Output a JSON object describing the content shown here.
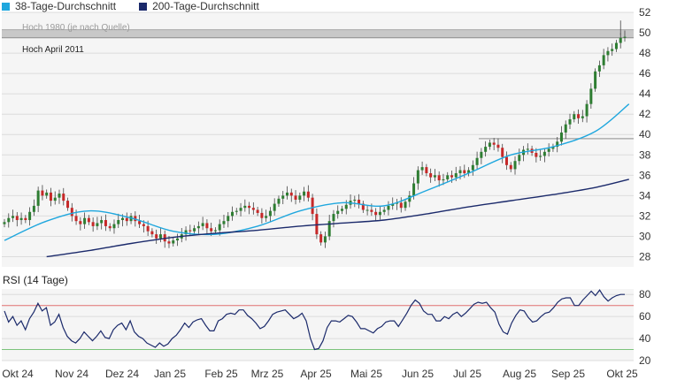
{
  "legend": {
    "items": [
      {
        "label": "38-Tage-Durchschnitt",
        "color": "#1fa7de"
      },
      {
        "label": "200-Tage-Durchschnitt",
        "color": "#1b2a6b"
      }
    ]
  },
  "chart_data": [
    {
      "type": "candlestick",
      "title": "",
      "ylim": [
        27,
        52
      ],
      "y_ticks": [
        "28",
        "30",
        "32",
        "34",
        "36",
        "38",
        "40",
        "42",
        "44",
        "46",
        "48",
        "50",
        "52"
      ],
      "x_ticks": [
        "Okt 24",
        "Nov 24",
        "Dez 24",
        "Jan 25",
        "Feb 25",
        "Mrz 25",
        "Apr 25",
        "Mai 25",
        "Jun 25",
        "Jul 25",
        "Aug 25",
        "Sep 25",
        "Okt 25"
      ],
      "grid": true,
      "annotations": {
        "band": {
          "label": "Hoch 1980 (je nach Quelle)",
          "from": 49.5,
          "to": 50.3
        },
        "line_label": "Hoch April 2011",
        "resistance": 39.6
      },
      "closes": [
        31.4,
        31.8,
        32.0,
        31.6,
        31.8,
        31.6,
        32.4,
        33.0,
        34.5,
        34.0,
        34.3,
        33.5,
        33.8,
        34.2,
        33.5,
        32.8,
        32.0,
        31.5,
        31.2,
        31.8,
        31.4,
        31.0,
        31.3,
        31.6,
        31.0,
        30.8,
        31.2,
        31.6,
        31.8,
        31.5,
        32.0,
        31.5,
        31.2,
        31.0,
        30.5,
        30.2,
        29.8,
        30.2,
        29.5,
        29.3,
        29.6,
        29.8,
        30.2,
        30.6,
        30.5,
        30.8,
        31.0,
        31.3,
        30.8,
        30.5,
        30.6,
        31.2,
        31.5,
        32.0,
        32.4,
        32.5,
        32.8,
        33.0,
        32.8,
        32.6,
        32.3,
        31.8,
        32.0,
        32.5,
        33.2,
        33.7,
        34.0,
        34.3,
        34.0,
        33.6,
        34.0,
        34.4,
        33.8,
        32.2,
        30.2,
        29.4,
        30.0,
        31.5,
        32.2,
        32.5,
        32.7,
        33.1,
        33.5,
        33.6,
        33.2,
        32.6,
        32.6,
        32.4,
        32.1,
        32.4,
        32.6,
        33.0,
        33.2,
        33.3,
        32.8,
        33.4,
        34.0,
        35.2,
        36.5,
        36.8,
        36.2,
        35.8,
        36.0,
        35.5,
        35.6,
        36.0,
        35.8,
        36.2,
        36.5,
        36.2,
        36.5,
        37.0,
        37.7,
        38.3,
        38.8,
        39.2,
        39.0,
        38.7,
        37.8,
        37.0,
        36.6,
        37.4,
        38.0,
        38.5,
        38.6,
        38.2,
        37.8,
        37.9,
        38.3,
        38.6,
        38.8,
        39.3,
        40.2,
        41.0,
        41.5,
        42.0,
        41.6,
        41.8,
        43.0,
        44.5,
        46.2,
        46.8,
        47.8,
        48.2,
        48.4,
        49.0,
        49.5,
        49.6
      ],
      "series": [
        {
          "name": "38-Tage-Durchschnitt",
          "x": [
            0,
            10,
            20,
            30,
            40,
            50,
            60,
            70,
            80,
            90,
            100,
            110,
            120,
            130,
            140,
            148
          ],
          "values": [
            29.6,
            31.5,
            32.5,
            31.8,
            30.5,
            30.2,
            31.0,
            32.5,
            33.3,
            33.0,
            34.5,
            36.2,
            38.0,
            38.8,
            40.3,
            43.0
          ]
        },
        {
          "name": "200-Tage-Durchschnitt",
          "x": [
            10,
            20,
            30,
            40,
            50,
            60,
            70,
            80,
            90,
            100,
            110,
            120,
            130,
            140,
            148
          ],
          "values": [
            28.0,
            28.6,
            29.3,
            29.9,
            30.3,
            30.6,
            31.0,
            31.3,
            31.6,
            32.2,
            32.9,
            33.5,
            34.1,
            34.8,
            35.6
          ]
        }
      ]
    },
    {
      "type": "line",
      "title": "RSI (14 Tage)",
      "ylim": [
        20,
        85
      ],
      "y_ticks": [
        "20",
        "40",
        "60",
        "80"
      ],
      "reference_lines": [
        70,
        30
      ],
      "values": [
        65,
        55,
        60,
        52,
        56,
        48,
        58,
        64,
        72,
        65,
        68,
        52,
        55,
        62,
        50,
        42,
        38,
        36,
        40,
        46,
        42,
        38,
        42,
        47,
        41,
        40,
        48,
        52,
        54,
        48,
        56,
        46,
        42,
        40,
        36,
        34,
        32,
        36,
        33,
        35,
        40,
        43,
        48,
        54,
        50,
        55,
        57,
        58,
        52,
        47,
        47,
        56,
        58,
        62,
        63,
        62,
        66,
        66,
        61,
        58,
        54,
        49,
        51,
        56,
        62,
        64,
        65,
        66,
        62,
        58,
        60,
        63,
        56,
        40,
        30,
        31,
        38,
        50,
        56,
        56,
        55,
        58,
        61,
        60,
        55,
        49,
        49,
        47,
        45,
        49,
        51,
        55,
        56,
        56,
        51,
        57,
        63,
        70,
        75,
        72,
        65,
        62,
        62,
        56,
        56,
        60,
        58,
        62,
        64,
        60,
        63,
        67,
        71,
        73,
        72,
        73,
        68,
        64,
        53,
        46,
        44,
        54,
        61,
        66,
        65,
        59,
        55,
        56,
        60,
        63,
        64,
        68,
        73,
        76,
        77,
        77,
        70,
        70,
        75,
        79,
        83,
        79,
        84,
        78,
        74,
        77,
        79,
        80,
        80
      ]
    }
  ]
}
